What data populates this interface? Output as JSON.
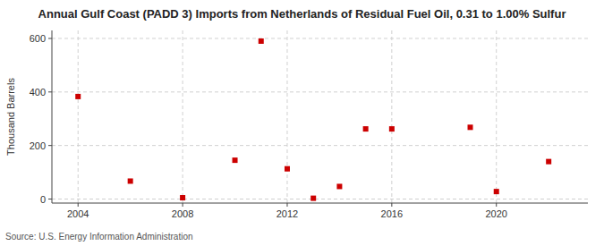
{
  "chart_data": {
    "type": "scatter",
    "title": "Annual Gulf Coast (PADD 3) Imports from Netherlands of Residual Fuel Oil, 0.31 to 1.00% Sulfur",
    "ylabel": "Thousand Barrels",
    "source": "Source: U.S. Energy Information Administration",
    "x": [
      2004,
      2006,
      2008,
      2010,
      2011,
      2012,
      2013,
      2014,
      2015,
      2016,
      2019,
      2020,
      2022
    ],
    "values": [
      383,
      67,
      5,
      145,
      590,
      113,
      3,
      47,
      262,
      262,
      268,
      28,
      140
    ],
    "color": "#cc0000",
    "marker": "square",
    "xlim": [
      2003,
      2023.5
    ],
    "xticks": [
      2004,
      2008,
      2012,
      2016,
      2020
    ],
    "ylim": [
      -15,
      630
    ],
    "yticks": [
      0,
      200,
      400,
      600
    ],
    "grid": true
  }
}
